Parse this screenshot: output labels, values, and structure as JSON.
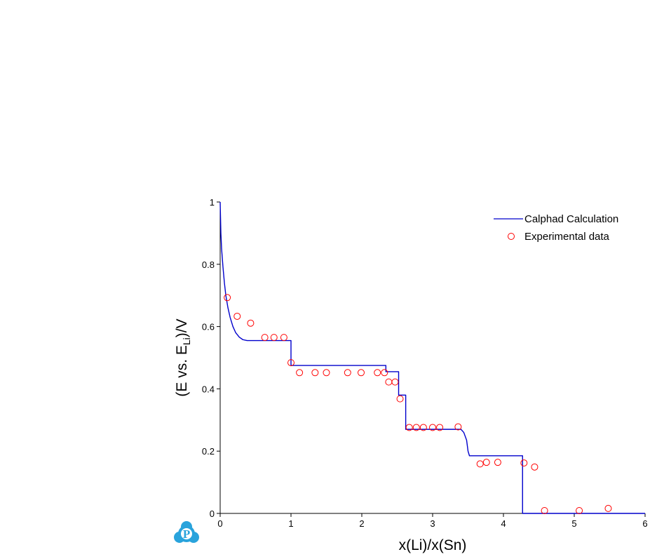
{
  "chart_data": {
    "type": "line",
    "xlabel": "x(Li)/x(Sn)",
    "ylabel_main": "(E vs. E",
    "ylabel_sub": "Li",
    "ylabel_tail": ")/V",
    "xlim": [
      0,
      6
    ],
    "ylim": [
      0,
      1
    ],
    "x_ticks": [
      0,
      1,
      2,
      3,
      4,
      5,
      6
    ],
    "x_tick_labels": [
      "0",
      "1",
      "2",
      "3",
      "4",
      "5",
      "6"
    ],
    "y_ticks": [
      0,
      0.2,
      0.4,
      0.6,
      0.8,
      1
    ],
    "y_tick_labels": [
      "0",
      "0.2",
      "0.4",
      "0.6",
      "0.8",
      "1"
    ],
    "grid": false,
    "legend": {
      "placement": "top-right",
      "entries": [
        "Calphad Calculation",
        "Experimental data"
      ]
    },
    "series": [
      {
        "name": "Calphad Calculation",
        "kind": "line",
        "color": "#0000cc",
        "points": [
          [
            0.0,
            1.0
          ],
          [
            0.005,
            0.95
          ],
          [
            0.01,
            0.9
          ],
          [
            0.02,
            0.85
          ],
          [
            0.04,
            0.79
          ],
          [
            0.06,
            0.74
          ],
          [
            0.08,
            0.7
          ],
          [
            0.11,
            0.66
          ],
          [
            0.14,
            0.63
          ],
          [
            0.18,
            0.6
          ],
          [
            0.22,
            0.58
          ],
          [
            0.27,
            0.566
          ],
          [
            0.32,
            0.558
          ],
          [
            0.38,
            0.555
          ],
          [
            1.0,
            0.555
          ],
          [
            1.0,
            0.475
          ],
          [
            2.34,
            0.475
          ],
          [
            2.34,
            0.455
          ],
          [
            2.52,
            0.455
          ],
          [
            2.52,
            0.38
          ],
          [
            2.62,
            0.38
          ],
          [
            2.62,
            0.27
          ],
          [
            3.4,
            0.27
          ],
          [
            3.44,
            0.26
          ],
          [
            3.48,
            0.235
          ],
          [
            3.5,
            0.2
          ],
          [
            3.52,
            0.185
          ],
          [
            4.27,
            0.185
          ],
          [
            4.27,
            0.0
          ],
          [
            6.0,
            0.0
          ]
        ]
      },
      {
        "name": "Experimental data",
        "kind": "scatter",
        "color": "#ff0000",
        "points": [
          [
            0.1,
            0.693
          ],
          [
            0.24,
            0.633
          ],
          [
            0.43,
            0.611
          ],
          [
            0.63,
            0.565
          ],
          [
            0.76,
            0.565
          ],
          [
            0.9,
            0.565
          ],
          [
            1.0,
            0.484
          ],
          [
            1.12,
            0.452
          ],
          [
            1.34,
            0.452
          ],
          [
            1.5,
            0.452
          ],
          [
            1.8,
            0.452
          ],
          [
            1.99,
            0.452
          ],
          [
            2.22,
            0.452
          ],
          [
            2.32,
            0.452
          ],
          [
            2.38,
            0.422
          ],
          [
            2.47,
            0.422
          ],
          [
            2.54,
            0.368
          ],
          [
            2.67,
            0.276
          ],
          [
            2.77,
            0.276
          ],
          [
            2.87,
            0.276
          ],
          [
            3.0,
            0.276
          ],
          [
            3.1,
            0.276
          ],
          [
            3.36,
            0.278
          ],
          [
            3.67,
            0.159
          ],
          [
            3.76,
            0.164
          ],
          [
            3.92,
            0.164
          ],
          [
            4.29,
            0.162
          ],
          [
            4.44,
            0.149
          ],
          [
            4.58,
            0.009
          ],
          [
            5.07,
            0.009
          ],
          [
            5.48,
            0.016
          ]
        ]
      }
    ]
  },
  "logo": {
    "icon": "p-badge-icon",
    "letter": "P",
    "color": "#29a3dc"
  }
}
